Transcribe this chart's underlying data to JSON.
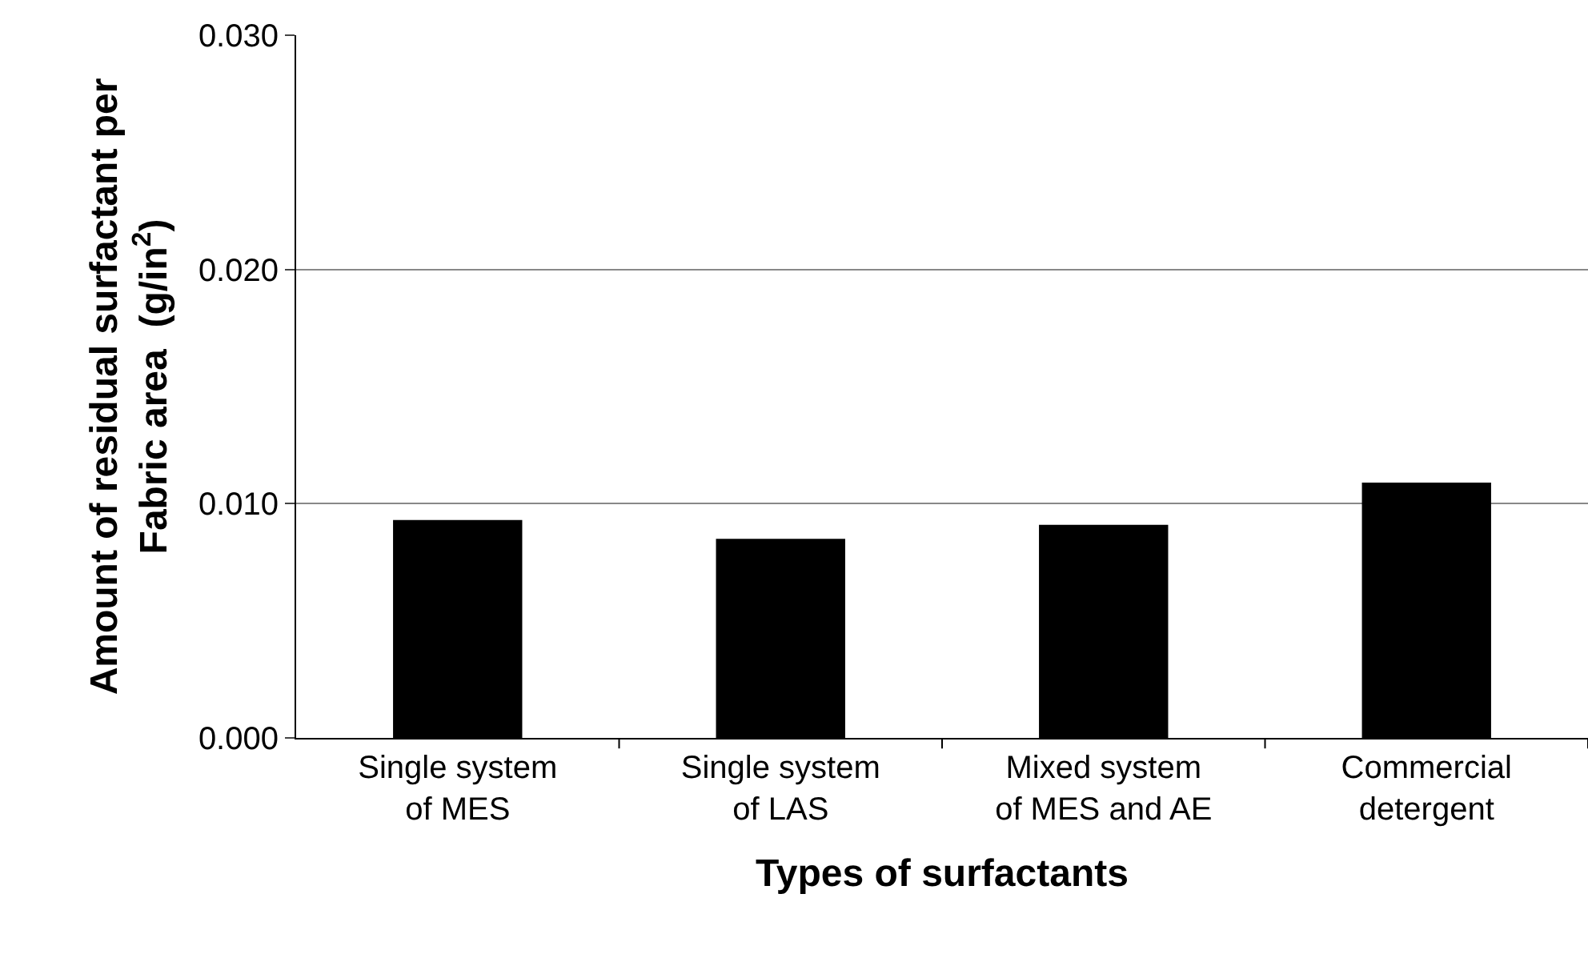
{
  "chart_data": {
    "type": "bar",
    "xlabel": "Types of surfactants",
    "ylabel": "Amount of residual surfactant per Fabric area  (g/in$^{2}$)",
    "categories": [
      "Single system of MES",
      "Single system of LAS",
      "Mixed system of MES and AE",
      "Commercial detergent"
    ],
    "values": [
      0.0093,
      0.0085,
      0.0091,
      0.0109
    ],
    "color": "#000000",
    "ylim": [
      0,
      0.03
    ],
    "yticks": [
      {
        "value": 0,
        "label": "0.000"
      },
      {
        "value": 0.01,
        "label": "0.010"
      },
      {
        "value": 0.02,
        "label": "0.020"
      },
      {
        "value": 0.03,
        "label": "0.030"
      }
    ],
    "grid": "y"
  }
}
